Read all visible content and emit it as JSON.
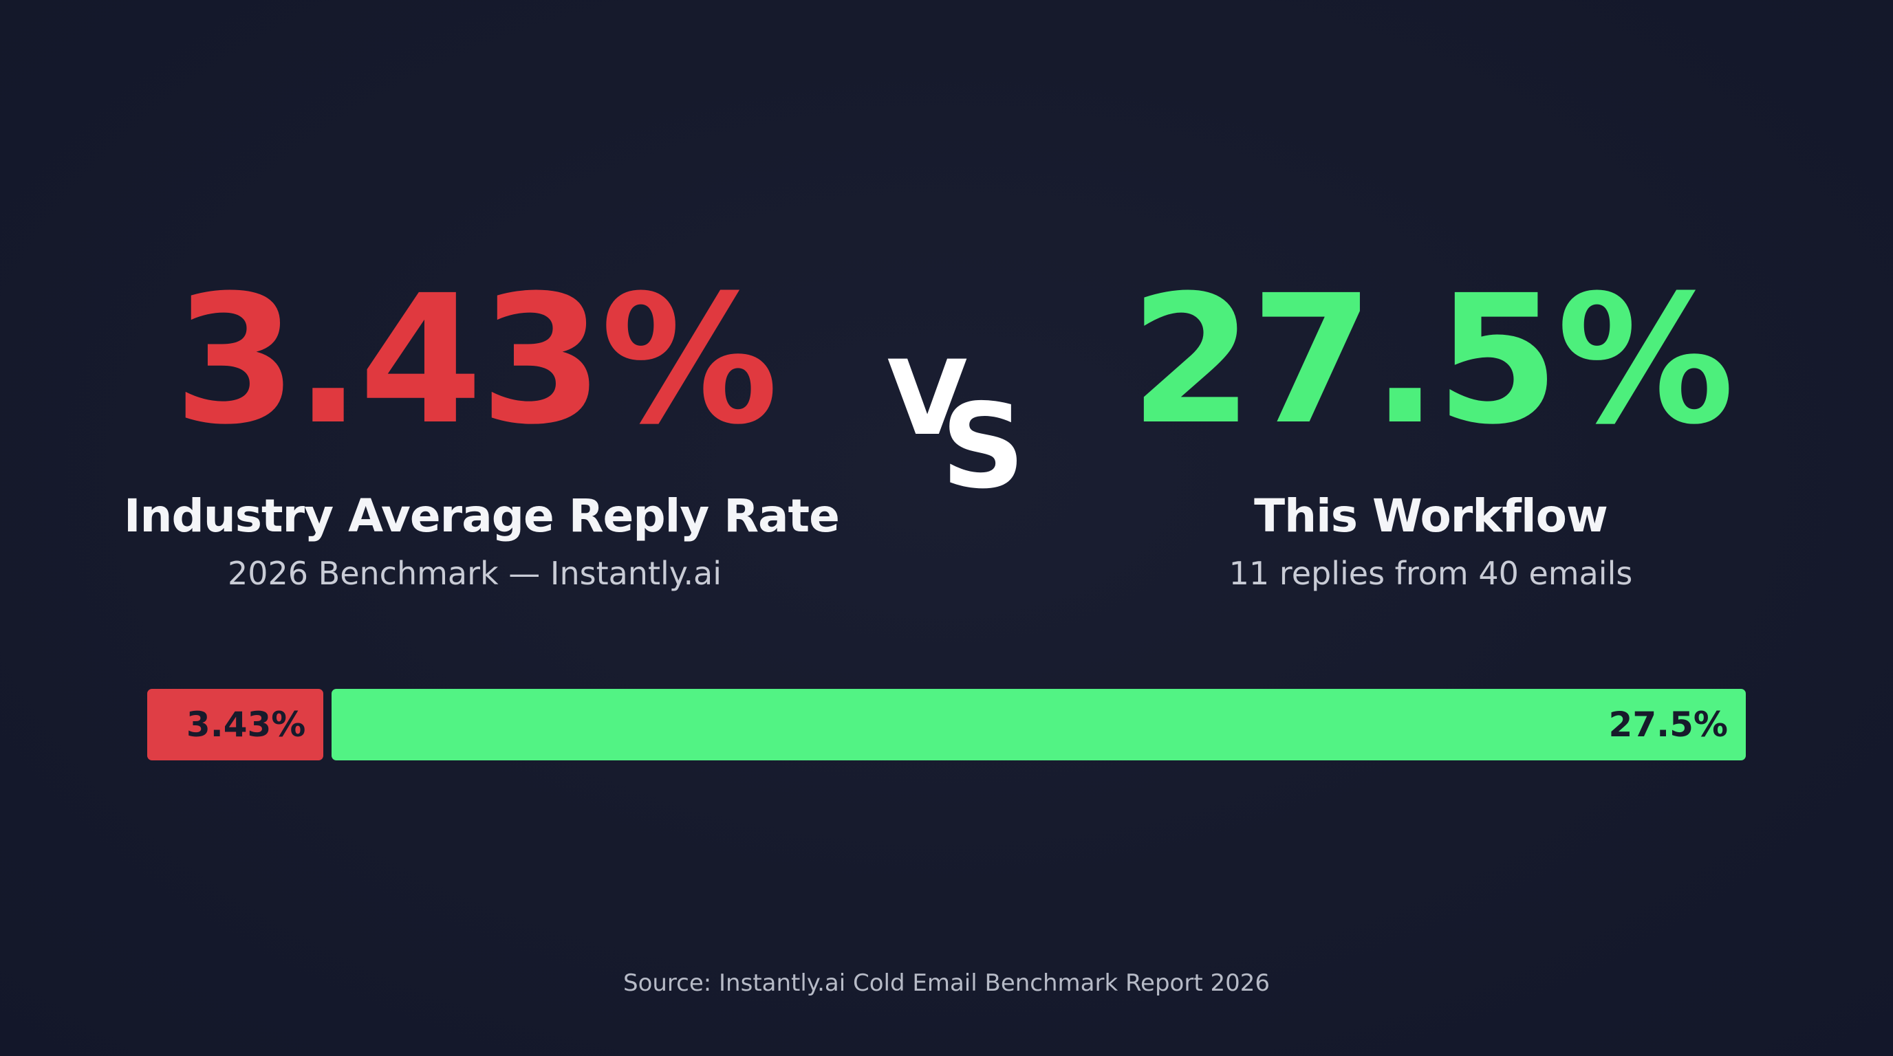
{
  "left_stat": {
    "value": "3.43%",
    "label": "Industry Average Reply Rate",
    "sublabel": "2026 Benchmark — Instantly.ai"
  },
  "vs_text": {
    "v": "V",
    "s": "S"
  },
  "right_stat": {
    "value": "27.5%",
    "label": "This Workflow",
    "sublabel": "11 replies from 40 emails"
  },
  "source": "Source: Instantly.ai Cold Email Benchmark Report 2026",
  "colors": {
    "background": "#161a2c",
    "industry": "#e0393f",
    "workflow": "#4def7c",
    "text": "#f4f5f8"
  },
  "chart_data": {
    "type": "bar",
    "orientation": "horizontal",
    "categories": [
      "Industry Average Reply Rate",
      "This Workflow"
    ],
    "values": [
      3.43,
      27.5
    ],
    "data_labels": [
      "3.43%",
      "27.5%"
    ],
    "colors": [
      "#df3e45",
      "#52f384"
    ],
    "unit": "%"
  }
}
